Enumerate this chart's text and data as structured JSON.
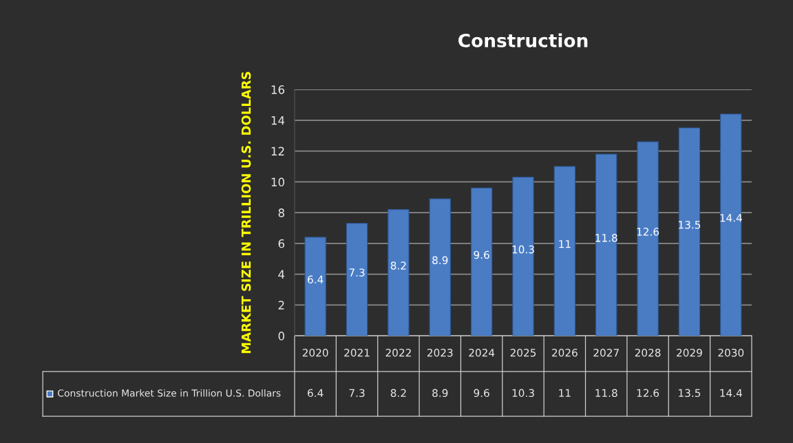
{
  "chart_data": {
    "type": "bar",
    "title": "Construction",
    "ylabel": "MARKET SIZE IN TRILLION U.S. DOLLARS",
    "categories": [
      "2020",
      "2021",
      "2022",
      "2023",
      "2024",
      "2025",
      "2026",
      "2027",
      "2028",
      "2029",
      "2030"
    ],
    "series": [
      {
        "name": "Construction Market Size in Trillion U.S. Dollars",
        "color": "#4a7cc4",
        "values": [
          6.4,
          7.3,
          8.2,
          8.9,
          9.6,
          10.3,
          11,
          11.8,
          12.6,
          13.5,
          14.4
        ],
        "value_labels": [
          "6.4",
          "7.3",
          "8.2",
          "8.9",
          "9.6",
          "10.3",
          "11",
          "11.8",
          "12.6",
          "13.5",
          "14.4"
        ]
      }
    ],
    "annotations": [
      "6.4",
      "7.3",
      "8.2",
      "8.9",
      "9.6",
      "10.3",
      "11",
      "11.8",
      "12.6",
      "13.5",
      "14.4"
    ],
    "ylim": [
      0,
      16
    ],
    "yticks": [
      0,
      2,
      4,
      6,
      8,
      10,
      12,
      14,
      16
    ],
    "grid": "y",
    "legend": "bottom left"
  }
}
